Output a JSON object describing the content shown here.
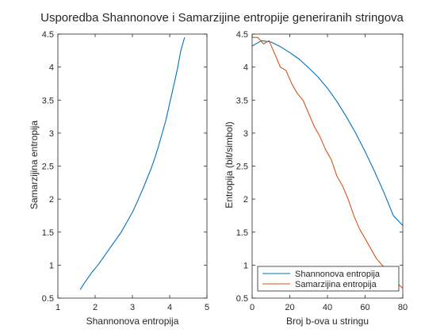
{
  "figure": {
    "title": "Usporedba Shannonove i Samarzijine entropije generiranih stringova"
  },
  "colors": {
    "series1": "#0072BD",
    "series2": "#D95319",
    "axis": "#262626",
    "background": "#ffffff"
  },
  "chart_data": [
    {
      "type": "line",
      "xlabel": "Shannonova entropija",
      "ylabel": "Samarzijina entropija",
      "xlim": [
        1,
        5
      ],
      "ylim": [
        0.5,
        4.5
      ],
      "xticks": [
        1,
        2,
        3,
        4,
        5
      ],
      "yticks": [
        0.5,
        1,
        1.5,
        2,
        2.5,
        3,
        3.5,
        4,
        4.5
      ],
      "grid": false,
      "series": [
        {
          "color": "#0072BD",
          "x": [
            1.6,
            1.7,
            1.8,
            1.9,
            2.0,
            2.1,
            2.2,
            2.3,
            2.4,
            2.5,
            2.6,
            2.7,
            2.8,
            2.9,
            3.0,
            3.1,
            3.2,
            3.3,
            3.4,
            3.5,
            3.6,
            3.7,
            3.8,
            3.9,
            4.0,
            4.1,
            4.2,
            4.3,
            4.4
          ],
          "y": [
            0.63,
            0.72,
            0.8,
            0.88,
            0.95,
            1.02,
            1.1,
            1.18,
            1.26,
            1.34,
            1.42,
            1.5,
            1.6,
            1.7,
            1.8,
            1.92,
            2.05,
            2.18,
            2.32,
            2.46,
            2.62,
            2.8,
            3.0,
            3.2,
            3.45,
            3.7,
            3.95,
            4.25,
            4.45
          ]
        }
      ]
    },
    {
      "type": "line",
      "xlabel": "Broj b-ova u stringu",
      "ylabel": "Entropija (bit/simbol)",
      "xlim": [
        0,
        80
      ],
      "ylim": [
        0.5,
        4.5
      ],
      "xticks": [
        0,
        20,
        40,
        60,
        80
      ],
      "yticks": [
        0.5,
        1,
        1.5,
        2,
        2.5,
        3,
        3.5,
        4,
        4.5
      ],
      "grid": false,
      "legend_position": "bottom-right",
      "series": [
        {
          "name": "Shannonova entropija",
          "color": "#0072BD",
          "x": [
            0,
            5,
            10,
            15,
            20,
            25,
            30,
            35,
            40,
            45,
            50,
            55,
            60,
            65,
            70,
            75,
            80
          ],
          "y": [
            4.32,
            4.4,
            4.38,
            4.31,
            4.22,
            4.12,
            3.99,
            3.85,
            3.68,
            3.48,
            3.25,
            3.0,
            2.72,
            2.42,
            2.1,
            1.75,
            1.6
          ]
        },
        {
          "name": "Samarzijina entropija",
          "color": "#D95319",
          "x": [
            0,
            3,
            6,
            9,
            12,
            15,
            18,
            21,
            24,
            27,
            30,
            33,
            36,
            39,
            42,
            45,
            48,
            51,
            54,
            57,
            60,
            63,
            66,
            69,
            72,
            75,
            78,
            80
          ],
          "y": [
            4.45,
            4.45,
            4.35,
            4.4,
            4.2,
            4.0,
            3.95,
            3.75,
            3.6,
            3.5,
            3.3,
            3.1,
            2.95,
            2.75,
            2.6,
            2.35,
            2.2,
            2.0,
            1.75,
            1.55,
            1.4,
            1.25,
            1.1,
            1.0,
            0.9,
            0.8,
            0.7,
            0.65
          ]
        }
      ]
    }
  ]
}
